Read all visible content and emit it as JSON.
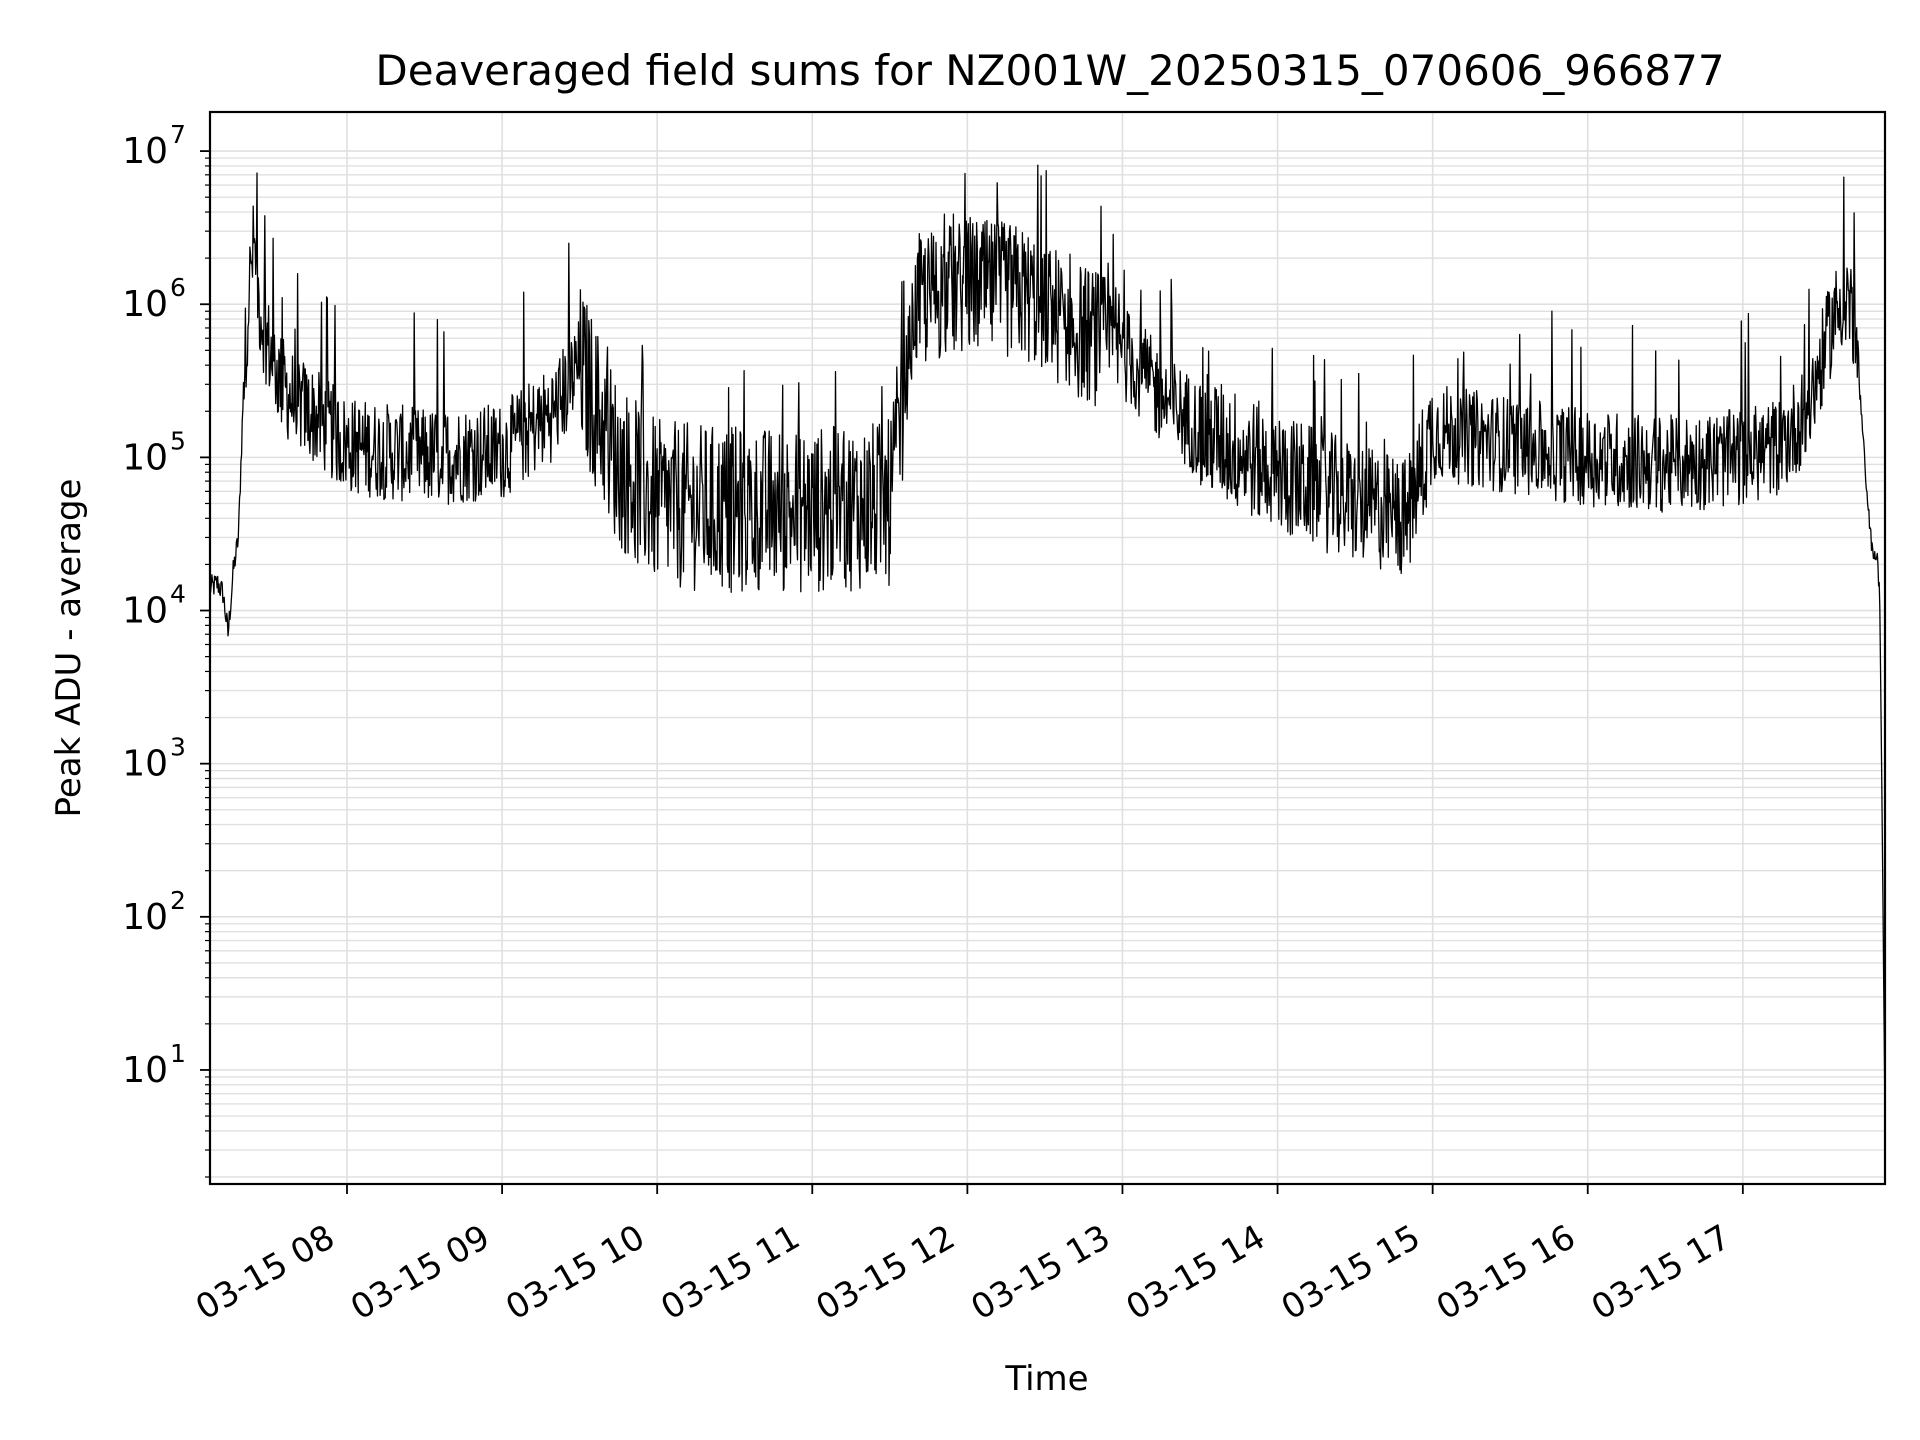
{
  "chart_data": {
    "type": "line",
    "title": "Deaveraged field sums for NZ001W_20250315_070606_966877",
    "xlabel": "Time",
    "ylabel": "Peak ADU - average",
    "yscale": "log",
    "ylim": [
      1.8,
      18000000
    ],
    "xlim": [
      "2025-03-15 07:07",
      "2025-03-15 17:55"
    ],
    "grid": true,
    "line_color": "#000000",
    "grid_color": "#e0e0e0",
    "x_ticks": [
      {
        "value": "2025-03-15 08:00",
        "label": "03-15 08"
      },
      {
        "value": "2025-03-15 09:00",
        "label": "03-15 09"
      },
      {
        "value": "2025-03-15 10:00",
        "label": "03-15 10"
      },
      {
        "value": "2025-03-15 11:00",
        "label": "03-15 11"
      },
      {
        "value": "2025-03-15 12:00",
        "label": "03-15 12"
      },
      {
        "value": "2025-03-15 13:00",
        "label": "03-15 13"
      },
      {
        "value": "2025-03-15 14:00",
        "label": "03-15 14"
      },
      {
        "value": "2025-03-15 15:00",
        "label": "03-15 15"
      },
      {
        "value": "2025-03-15 16:00",
        "label": "03-15 16"
      },
      {
        "value": "2025-03-15 17:00",
        "label": "03-15 17"
      }
    ],
    "y_ticks": [
      {
        "value": 10,
        "base": "10",
        "exp": "1"
      },
      {
        "value": 100,
        "base": "10",
        "exp": "2"
      },
      {
        "value": 1000,
        "base": "10",
        "exp": "3"
      },
      {
        "value": 10000,
        "base": "10",
        "exp": "4"
      },
      {
        "value": 100000,
        "base": "10",
        "exp": "5"
      },
      {
        "value": 1000000,
        "base": "10",
        "exp": "6"
      },
      {
        "value": 10000000,
        "base": "10",
        "exp": "7"
      }
    ],
    "series": [
      {
        "x": [
          "2025-03-15 07:07",
          "2025-03-15 07:10",
          "2025-03-15 07:12",
          "2025-03-15 07:14",
          "2025-03-15 07:16",
          "2025-03-15 07:18",
          "2025-03-15 07:20",
          "2025-03-15 07:22",
          "2025-03-15 07:24",
          "2025-03-15 07:26",
          "2025-03-15 07:28",
          "2025-03-15 07:30",
          "2025-03-15 07:32",
          "2025-03-15 07:35",
          "2025-03-15 07:38",
          "2025-03-15 07:45",
          "2025-03-15 08:00",
          "2025-03-15 08:30",
          "2025-03-15 09:00",
          "2025-03-15 09:20",
          "2025-03-15 09:30",
          "2025-03-15 09:45",
          "2025-03-15 10:00",
          "2025-03-15 10:30",
          "2025-03-15 11:00",
          "2025-03-15 11:30",
          "2025-03-15 11:36",
          "2025-03-15 11:40",
          "2025-03-15 11:50",
          "2025-03-15 12:00",
          "2025-03-15 12:20",
          "2025-03-15 12:30",
          "2025-03-15 12:40",
          "2025-03-15 12:50",
          "2025-03-15 13:00",
          "2025-03-15 13:15",
          "2025-03-15 13:30",
          "2025-03-15 14:00",
          "2025-03-15 14:30",
          "2025-03-15 14:50",
          "2025-03-15 15:00",
          "2025-03-15 15:30",
          "2025-03-15 16:00",
          "2025-03-15 16:30",
          "2025-03-15 17:00",
          "2025-03-15 17:15",
          "2025-03-15 17:25",
          "2025-03-15 17:30",
          "2025-03-15 17:35",
          "2025-03-15 17:40",
          "2025-03-15 17:43",
          "2025-03-15 17:45",
          "2025-03-15 17:48",
          "2025-03-15 17:50",
          "2025-03-15 17:52",
          "2025-03-15 17:53",
          "2025-03-15 17:54",
          "2025-03-15 17:55"
        ],
        "y": [
          14000,
          15000,
          13000,
          7000,
          18000,
          30000,
          300000,
          1200000,
          2500000,
          1000000,
          700000,
          500000,
          400000,
          300000,
          250000,
          200000,
          120000,
          100000,
          110000,
          200000,
          400000,
          90000,
          50000,
          45000,
          45000,
          50000,
          300000,
          1000000,
          1200000,
          1300000,
          1200000,
          1000000,
          700000,
          600000,
          500000,
          250000,
          150000,
          80000,
          50000,
          40000,
          150000,
          120000,
          100000,
          90000,
          100000,
          120000,
          200000,
          400000,
          800000,
          1200000,
          800000,
          300000,
          60000,
          25000,
          22000,
          12000,
          300,
          4
        ]
      }
    ]
  }
}
